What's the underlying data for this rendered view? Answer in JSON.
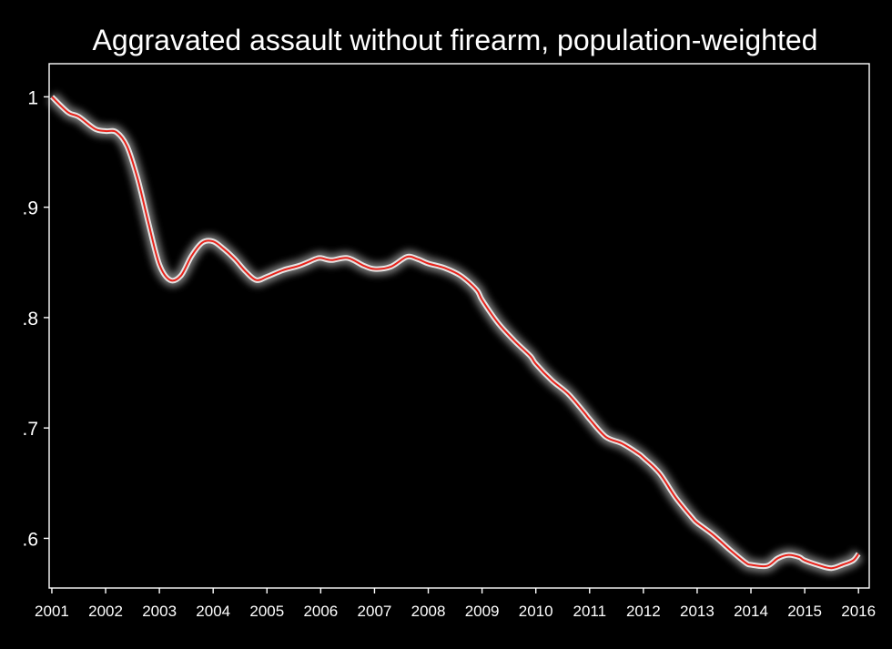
{
  "chart_data": {
    "type": "line",
    "title": "Aggravated assault without firearm, population-weighted",
    "xlabel": "",
    "ylabel": "",
    "xlim": [
      2000.95,
      2016.2
    ],
    "ylim": [
      0.555,
      1.03
    ],
    "grid": false,
    "x_ticks": [
      2001,
      2002,
      2003,
      2004,
      2005,
      2006,
      2007,
      2008,
      2009,
      2010,
      2011,
      2012,
      2013,
      2014,
      2015,
      2016
    ],
    "x_tick_labels": [
      "2001",
      "2002",
      "2003",
      "2004",
      "2005",
      "2006",
      "2007",
      "2008",
      "2009",
      "2010",
      "2011",
      "2012",
      "2013",
      "2014",
      "2015",
      "2016"
    ],
    "y_ticks": [
      1,
      0.9,
      0.8,
      0.7,
      0.6
    ],
    "y_tick_labels": [
      "1",
      ".9",
      ".8",
      ".7",
      ".6"
    ],
    "series": [
      {
        "name": "Aggravated assault without firearm",
        "color": "#e8221a",
        "band_color": "#d9d9d9",
        "x": [
          2001.0,
          2001.3,
          2001.5,
          2001.8,
          2002.0,
          2002.2,
          2002.4,
          2002.6,
          2002.8,
          2003.0,
          2003.2,
          2003.4,
          2003.6,
          2003.8,
          2004.0,
          2004.2,
          2004.4,
          2004.6,
          2004.8,
          2005.0,
          2005.3,
          2005.6,
          2005.9,
          2006.0,
          2006.2,
          2006.5,
          2006.8,
          2007.0,
          2007.3,
          2007.6,
          2007.8,
          2008.0,
          2008.3,
          2008.6,
          2008.9,
          2009.0,
          2009.3,
          2009.6,
          2009.9,
          2010.0,
          2010.3,
          2010.6,
          2010.9,
          2011.0,
          2011.3,
          2011.6,
          2011.9,
          2012.0,
          2012.3,
          2012.6,
          2012.9,
          2013.0,
          2013.3,
          2013.6,
          2013.9,
          2014.0,
          2014.3,
          2014.5,
          2014.7,
          2014.9,
          2015.0,
          2015.3,
          2015.5,
          2015.7,
          2015.9,
          2016.0
        ],
        "y": [
          1.0,
          0.986,
          0.982,
          0.971,
          0.969,
          0.968,
          0.955,
          0.925,
          0.885,
          0.848,
          0.834,
          0.838,
          0.856,
          0.868,
          0.869,
          0.862,
          0.853,
          0.842,
          0.834,
          0.837,
          0.843,
          0.847,
          0.853,
          0.854,
          0.852,
          0.854,
          0.847,
          0.844,
          0.846,
          0.855,
          0.853,
          0.849,
          0.845,
          0.838,
          0.825,
          0.816,
          0.795,
          0.779,
          0.765,
          0.758,
          0.743,
          0.731,
          0.714,
          0.708,
          0.692,
          0.686,
          0.677,
          0.673,
          0.659,
          0.637,
          0.619,
          0.614,
          0.603,
          0.59,
          0.578,
          0.576,
          0.575,
          0.582,
          0.585,
          0.583,
          0.58,
          0.575,
          0.573,
          0.576,
          0.58,
          0.586
        ]
      }
    ]
  }
}
